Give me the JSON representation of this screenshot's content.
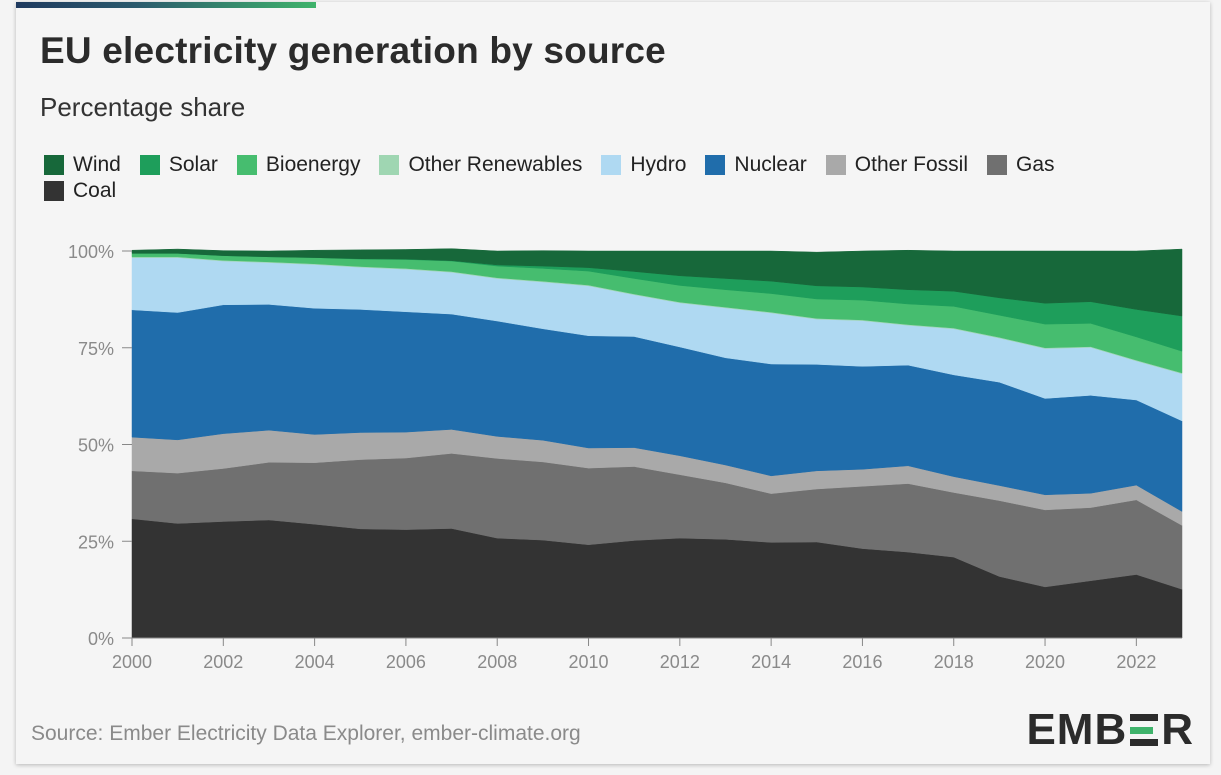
{
  "header": {
    "title": "EU electricity generation by source",
    "subtitle": "Percentage share"
  },
  "footer": {
    "source": "Source: Ember Electricity Data Explorer, ember-climate.org",
    "logo_left": "EMB",
    "logo_right": "R"
  },
  "legend": [
    {
      "label": "Wind",
      "color": "#17683a"
    },
    {
      "label": "Solar",
      "color": "#1e9e5b"
    },
    {
      "label": "Bioenergy",
      "color": "#46bd6f"
    },
    {
      "label": "Other Renewables",
      "color": "#9fd6b2"
    },
    {
      "label": "Hydro",
      "color": "#afd9f2"
    },
    {
      "label": "Nuclear",
      "color": "#206dab"
    },
    {
      "label": "Other Fossil",
      "color": "#a9a9a9"
    },
    {
      "label": "Gas",
      "color": "#707070"
    },
    {
      "label": "Coal",
      "color": "#333333"
    }
  ],
  "chart_data": {
    "type": "area",
    "stacked": true,
    "x": [
      2000,
      2001,
      2002,
      2003,
      2004,
      2005,
      2006,
      2007,
      2008,
      2009,
      2010,
      2011,
      2012,
      2013,
      2014,
      2015,
      2016,
      2017,
      2018,
      2019,
      2020,
      2021,
      2022,
      2023
    ],
    "x_ticks": [
      "2000",
      "2002",
      "2004",
      "2006",
      "2008",
      "2010",
      "2012",
      "2014",
      "2016",
      "2018",
      "2020",
      "2022"
    ],
    "y_ticks": [
      "0%",
      "25%",
      "50%",
      "75%",
      "100%"
    ],
    "ylim": [
      0,
      100
    ],
    "series": [
      {
        "name": "Coal",
        "color": "#333333",
        "values": [
          30.8,
          29.6,
          30.1,
          30.5,
          29.4,
          28.2,
          28.0,
          28.3,
          25.8,
          25.3,
          24.1,
          25.2,
          25.8,
          25.5,
          24.7,
          24.8,
          23.1,
          22.2,
          20.9,
          15.9,
          13.2,
          14.8,
          16.4,
          12.6
        ]
      },
      {
        "name": "Gas",
        "color": "#707070",
        "values": [
          12.4,
          13.0,
          13.7,
          14.9,
          15.9,
          17.9,
          18.5,
          19.4,
          20.6,
          20.2,
          19.8,
          19.1,
          16.4,
          14.6,
          12.6,
          13.7,
          16.1,
          17.7,
          16.7,
          19.6,
          19.9,
          18.9,
          19.3,
          16.5
        ]
      },
      {
        "name": "Other Fossil",
        "color": "#a9a9a9",
        "values": [
          8.7,
          8.6,
          9.0,
          8.3,
          7.3,
          7.0,
          6.7,
          6.2,
          5.7,
          5.6,
          5.2,
          4.9,
          4.9,
          4.6,
          4.6,
          4.7,
          4.4,
          4.6,
          4.1,
          3.9,
          3.9,
          3.7,
          3.8,
          3.6
        ]
      },
      {
        "name": "Nuclear",
        "color": "#206dab",
        "values": [
          32.9,
          32.9,
          33.3,
          32.5,
          32.6,
          31.8,
          31.1,
          29.8,
          29.8,
          28.8,
          29.0,
          28.7,
          28.1,
          27.7,
          28.9,
          27.5,
          26.6,
          26.0,
          26.3,
          26.7,
          24.9,
          25.3,
          22.0,
          23.4
        ]
      },
      {
        "name": "Hydro",
        "color": "#afd9f2",
        "values": [
          13.5,
          14.2,
          11.3,
          10.8,
          11.3,
          10.9,
          11.0,
          10.8,
          11.0,
          12.1,
          12.9,
          10.8,
          11.4,
          12.9,
          13.2,
          11.7,
          11.8,
          10.3,
          11.9,
          11.4,
          12.9,
          12.4,
          10.1,
          12.2
        ]
      },
      {
        "name": "Other Renewables",
        "color": "#9fd6b2",
        "values": [
          0.2,
          0.2,
          0.2,
          0.2,
          0.2,
          0.2,
          0.2,
          0.2,
          0.2,
          0.2,
          0.2,
          0.2,
          0.2,
          0.2,
          0.2,
          0.2,
          0.2,
          0.2,
          0.2,
          0.2,
          0.2,
          0.2,
          0.2,
          0.2
        ]
      },
      {
        "name": "Bioenergy",
        "color": "#46bd6f",
        "values": [
          0.9,
          0.9,
          1.2,
          1.3,
          1.6,
          1.9,
          2.3,
          2.7,
          3.0,
          3.3,
          3.6,
          4.0,
          4.3,
          4.5,
          4.8,
          5.0,
          5.1,
          5.3,
          5.6,
          5.7,
          6.1,
          6.0,
          6.0,
          5.6
        ]
      },
      {
        "name": "Solar",
        "color": "#1e9e5b",
        "values": [
          0.0,
          0.0,
          0.0,
          0.0,
          0.0,
          0.1,
          0.1,
          0.1,
          0.3,
          0.6,
          0.9,
          1.8,
          2.5,
          2.9,
          3.2,
          3.4,
          3.4,
          3.7,
          3.9,
          4.5,
          5.4,
          5.6,
          7.1,
          9.1
        ]
      },
      {
        "name": "Wind",
        "color": "#17683a",
        "values": [
          0.8,
          1.1,
          1.3,
          1.5,
          1.9,
          2.3,
          2.5,
          3.1,
          3.6,
          4.0,
          4.3,
          5.3,
          6.4,
          7.1,
          7.8,
          8.7,
          9.3,
          10.2,
          10.4,
          12.1,
          13.5,
          13.1,
          15.1,
          17.3
        ]
      }
    ]
  }
}
